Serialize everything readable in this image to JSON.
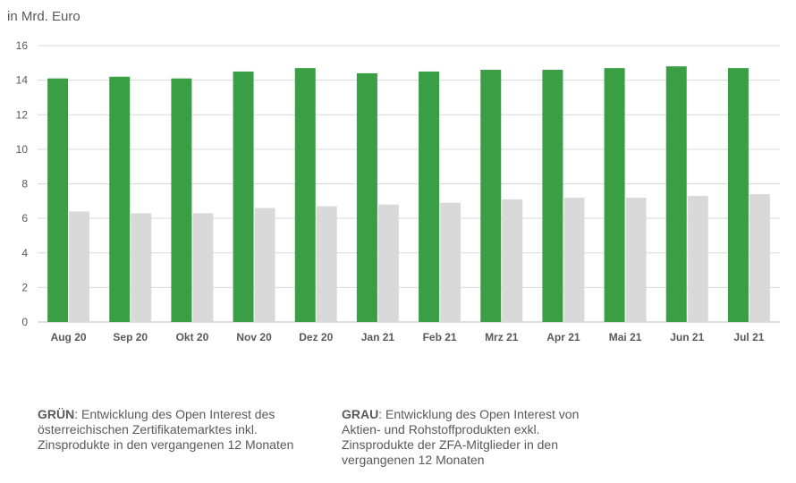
{
  "chart_data": {
    "type": "bar",
    "ylabel": "in Mrd. Euro",
    "ylim": [
      0,
      16
    ],
    "yticks": [
      0,
      2,
      4,
      6,
      8,
      10,
      12,
      14,
      16
    ],
    "grid": true,
    "categories": [
      "Aug 20",
      "Sep 20",
      "Okt 20",
      "Nov 20",
      "Dez 20",
      "Jan 21",
      "Feb 21",
      "Mrz 21",
      "Apr 21",
      "Mai 21",
      "Jun 21",
      "Jul 21"
    ],
    "series": [
      {
        "key": "gruen",
        "color": "#3a9e44",
        "values": [
          14.1,
          14.2,
          14.1,
          14.5,
          14.7,
          14.4,
          14.5,
          14.6,
          14.6,
          14.7,
          14.8,
          14.7
        ]
      },
      {
        "key": "grau",
        "color": "#d9d9d9",
        "values": [
          6.4,
          6.3,
          6.3,
          6.6,
          6.7,
          6.8,
          6.9,
          7.1,
          7.2,
          7.2,
          7.3,
          7.4
        ]
      }
    ]
  },
  "legend": {
    "green_title": "GRÜN",
    "green_text": ": Entwicklung des Open Interest des österreichischen Zertifikatemarktes inkl. Zinsprodukte in den vergangenen 12 Monaten",
    "gray_title": "GRAU",
    "gray_text": ": Entwicklung des Open Interest von Aktien- und Rohstoffprodukten exkl. Zinsprodukte der ZFA-Mitglieder in den vergangenen 12 Monaten"
  }
}
